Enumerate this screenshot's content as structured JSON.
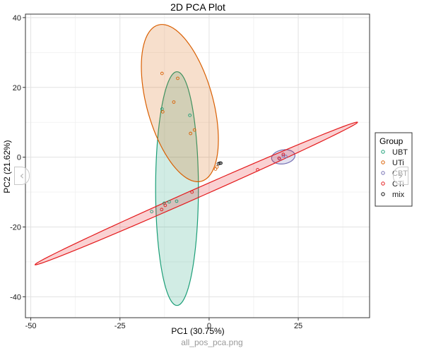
{
  "chart_data": {
    "type": "scatter",
    "title": "2D PCA Plot",
    "xlabel": "PC1 (30.75%)",
    "ylabel": "PC2 (21.62%)",
    "xlim": [
      -51.5,
      45
    ],
    "ylim": [
      -46,
      41
    ],
    "xticks": [
      -50,
      -25,
      0,
      25
    ],
    "xtick_labels": [
      "-50",
      "-25",
      "0",
      "25"
    ],
    "yticks": [
      -40,
      -20,
      0,
      20,
      40
    ],
    "ytick_labels": [
      "-40",
      "-20",
      "0",
      "20",
      "40"
    ],
    "grid": true,
    "legend": {
      "title": "Group",
      "position": "right"
    },
    "series": [
      {
        "name": "UBT",
        "color": "#1b9e77",
        "points": [
          [
            -13.2,
            13.8
          ],
          [
            -5.4,
            12.0
          ],
          [
            -12.6,
            -13.2
          ],
          [
            -9.1,
            -12.6
          ],
          [
            -16.1,
            -15.6
          ],
          [
            -11.2,
            -12.8
          ]
        ],
        "ellipse": {
          "center": [
            -9.0,
            -9.0
          ],
          "semi_major": 33.5,
          "semi_minor": 6.0,
          "angle_deg": 90
        }
      },
      {
        "name": "UTi",
        "color": "#d95f02",
        "points": [
          [
            -13.2,
            24.0
          ],
          [
            -8.8,
            22.6
          ],
          [
            -9.9,
            15.8
          ],
          [
            -13.0,
            13.0
          ],
          [
            -4.1,
            7.8
          ],
          [
            -5.2,
            6.8
          ],
          [
            1.8,
            -3.4
          ],
          [
            2.2,
            -2.8
          ]
        ],
        "ellipse": {
          "center": [
            -8.2,
            15.5
          ],
          "semi_major": 23.2,
          "semi_minor": 9.3,
          "angle_deg": 105
        }
      },
      {
        "name": "CBT",
        "color": "#7570b3",
        "points": [
          [
            19.8,
            -0.5
          ],
          [
            20.8,
            0.4
          ],
          [
            21.5,
            0.2
          ]
        ],
        "ellipse": {
          "center": [
            20.8,
            0.1
          ],
          "semi_major": 3.3,
          "semi_minor": 2.0,
          "angle_deg": 10
        }
      },
      {
        "name": "CTi",
        "color": "#e41a1c",
        "points": [
          [
            -4.8,
            -10.0
          ],
          [
            -12.3,
            -13.8
          ],
          [
            -13.3,
            -15.0
          ],
          [
            13.6,
            -3.6
          ],
          [
            19.6,
            -0.3
          ],
          [
            20.8,
            0.8
          ]
        ],
        "ellipse": {
          "center": [
            -3.6,
            -10.4
          ],
          "semi_major": 49.6,
          "semi_minor": 1.3,
          "angle_deg": 24.3
        }
      },
      {
        "name": "mix",
        "color": "#111111",
        "points": [
          [
            2.6,
            -1.9
          ],
          [
            3.0,
            -1.7
          ],
          [
            3.3,
            -1.7
          ]
        ],
        "ellipse": null
      }
    ]
  },
  "caption": "all_pos_pca.png",
  "nav": {
    "prev_glyph": "‹",
    "next_glyph": "›"
  }
}
